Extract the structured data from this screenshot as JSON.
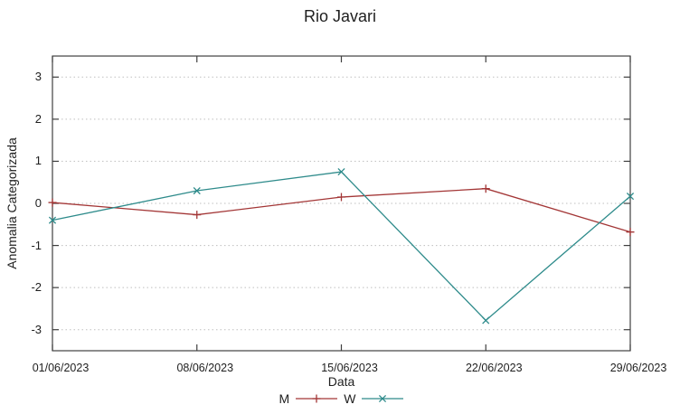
{
  "chart_data": {
    "type": "line",
    "title": "Rio Javari",
    "xlabel": "Data",
    "ylabel": "Anomalia Categorizada",
    "categories": [
      "01/06/2023",
      "08/06/2023",
      "15/06/2023",
      "22/06/2023",
      "29/06/2023"
    ],
    "y_ticks": [
      -3,
      -2,
      -1,
      0,
      1,
      2,
      3
    ],
    "ylim": [
      -3.5,
      3.5
    ],
    "grid": true,
    "grid_style": "dotted",
    "legend_position": "bottom-center",
    "series": [
      {
        "name": "M",
        "marker": "plus",
        "color": "#a33636",
        "values": [
          0.02,
          -0.27,
          0.15,
          0.35,
          -0.68
        ]
      },
      {
        "name": "W",
        "marker": "cross",
        "color": "#2e8b8b",
        "values": [
          -0.4,
          0.3,
          0.75,
          -2.78,
          0.17
        ]
      }
    ]
  },
  "colors": {
    "axis": "#3f3f3f",
    "grid": "#bfbfbf",
    "text": "#1f1f1f"
  }
}
